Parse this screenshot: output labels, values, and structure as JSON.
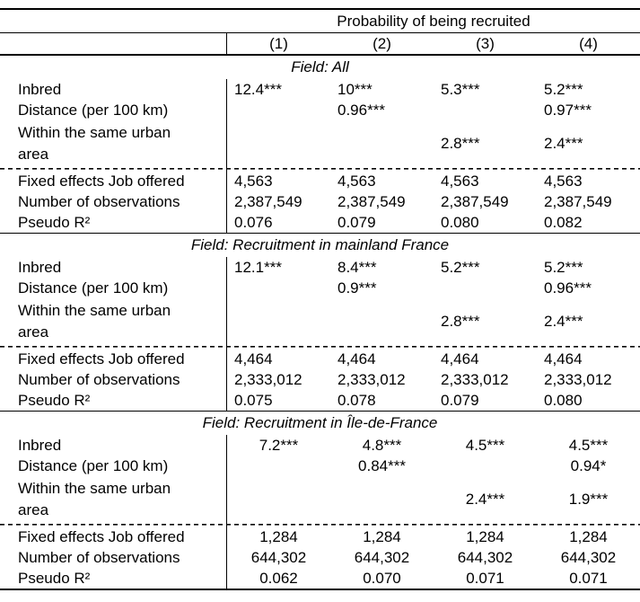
{
  "table": {
    "title": "Probability of being recruited",
    "columns": [
      "(1)",
      "(2)",
      "(3)",
      "(4)"
    ],
    "panels": [
      {
        "subtitle": "Field: All",
        "rows": [
          {
            "label": "Inbred",
            "values": [
              "12.4***",
              "10***",
              "5.3***",
              "5.2***"
            ]
          },
          {
            "label": "Distance (per 100 km)",
            "values": [
              "",
              "0.96***",
              "",
              "0.97***"
            ]
          },
          {
            "label_lines": [
              "Within the same urban",
              "area"
            ],
            "values": [
              "",
              "",
              "2.8***",
              "2.4***"
            ]
          }
        ],
        "stats": [
          {
            "label": "Fixed effects Job offered",
            "values": [
              "4,563",
              "4,563",
              "4,563",
              "4,563"
            ]
          },
          {
            "label": "Number of observations",
            "values": [
              "2,387,549",
              "2,387,549",
              "2,387,549",
              "2,387,549"
            ]
          },
          {
            "label": "Pseudo R²",
            "values": [
              "0.076",
              "0.079",
              "0.080",
              "0.082"
            ]
          }
        ]
      },
      {
        "subtitle": "Field: Recruitment in mainland France",
        "rows": [
          {
            "label": "Inbred",
            "values": [
              "12.1***",
              "8.4***",
              "5.2***",
              "5.2***"
            ]
          },
          {
            "label": "Distance (per 100 km)",
            "values": [
              "",
              "0.9***",
              "",
              "0.96***"
            ]
          },
          {
            "label_lines": [
              "Within the same urban",
              "area"
            ],
            "values": [
              "",
              "",
              "2.8***",
              "2.4***"
            ]
          }
        ],
        "stats": [
          {
            "label": "Fixed effects Job offered",
            "values": [
              "4,464",
              "4,464",
              "4,464",
              "4,464"
            ]
          },
          {
            "label": "Number of observations",
            "values": [
              "2,333,012",
              "2,333,012",
              "2,333,012",
              "2,333,012"
            ]
          },
          {
            "label": "Pseudo R²",
            "values": [
              "0.075",
              "0.078",
              "0.079",
              "0.080"
            ]
          }
        ]
      },
      {
        "subtitle": "Field: Recruitment in Île-de-France",
        "rows": [
          {
            "label": "Inbred",
            "values": [
              "7.2***",
              "4.8***",
              "4.5***",
              "4.5***"
            ]
          },
          {
            "label": "Distance (per 100 km)",
            "values": [
              "",
              "0.84***",
              "",
              "0.94*"
            ]
          },
          {
            "label_lines": [
              "Within the same urban",
              "area"
            ],
            "values": [
              "",
              "",
              "2.4***",
              "1.9***"
            ]
          }
        ],
        "stats": [
          {
            "label": "Fixed effects Job offered",
            "values": [
              "1,284",
              "1,284",
              "1,284",
              "1,284"
            ]
          },
          {
            "label": "Number of observations",
            "values": [
              "644,302",
              "644,302",
              "644,302",
              "644,302"
            ]
          },
          {
            "label": "Pseudo R²",
            "values": [
              "0.062",
              "0.070",
              "0.071",
              "0.071"
            ]
          }
        ]
      }
    ]
  }
}
